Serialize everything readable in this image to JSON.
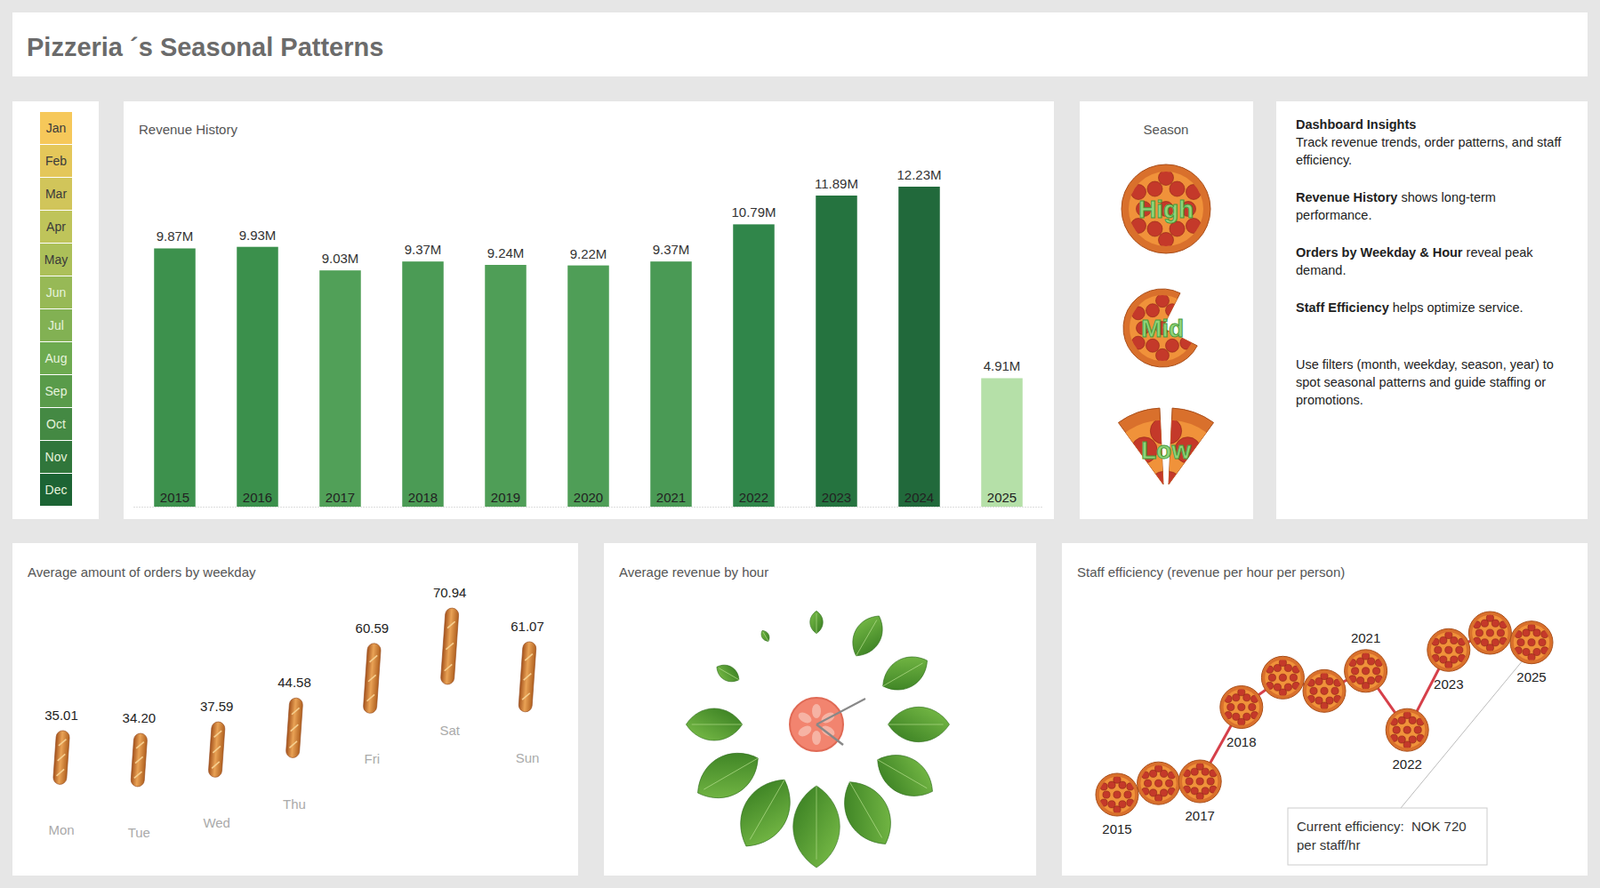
{
  "title": "Pizzeria ´s Seasonal Patterns",
  "month_filter": [
    "Jan",
    "Feb",
    "Mar",
    "Apr",
    "May",
    "Jun",
    "Jul",
    "Aug",
    "Sep",
    "Oct",
    "Nov",
    "Dec"
  ],
  "season_filter": {
    "title": "Season",
    "levels": [
      "High",
      "Mid",
      "Low"
    ]
  },
  "insights": {
    "heading": "Dashboard Insights",
    "intro": "Track revenue trends, order patterns, and staff efficiency.",
    "items": [
      {
        "bold": "Revenue History",
        "text": "shows long-term performance."
      },
      {
        "bold": "Orders by Weekday & Hour",
        "text": "reveal peak demand."
      },
      {
        "bold": "Staff Efficiency",
        "text": "helps optimize service."
      }
    ],
    "footer": "Use filters (month, weekday, season, year) to spot seasonal patterns and guide staffing or promotions."
  },
  "chart_data": [
    {
      "type": "bar",
      "title": "Revenue History",
      "categories": [
        "2015",
        "2016",
        "2017",
        "2018",
        "2019",
        "2020",
        "2021",
        "2022",
        "2023",
        "2024",
        "2025"
      ],
      "values": [
        9.87,
        9.93,
        9.03,
        9.37,
        9.24,
        9.22,
        9.37,
        10.79,
        11.89,
        12.23,
        4.91
      ],
      "value_labels": [
        "9.87M",
        "9.93M",
        "9.03M",
        "9.37M",
        "9.24M",
        "9.22M",
        "9.37M",
        "10.79M",
        "11.89M",
        "12.23M",
        "4.91M"
      ],
      "colors": [
        "#3d914d",
        "#3b904c",
        "#51a058",
        "#4b9b55",
        "#4f9e57",
        "#4f9e57",
        "#4a9a55",
        "#30864a",
        "#25733f",
        "#21693b",
        "#b5e0a8"
      ],
      "data_labels": true,
      "tick_labels": "x"
    },
    {
      "type": "scatter",
      "marker": "baguette",
      "title": "Average amount of orders by weekday",
      "categories": [
        "Mon",
        "Tue",
        "Wed",
        "Thu",
        "Fri",
        "Sat",
        "Sun"
      ],
      "values": [
        35.01,
        34.2,
        37.59,
        44.58,
        60.59,
        70.94,
        61.07
      ],
      "value_labels": [
        "35.01",
        "34.20",
        "37.59",
        "44.58",
        "60.59",
        "70.94",
        "61.07"
      ],
      "data_labels": true,
      "tick_labels": "x"
    },
    {
      "type": "radial",
      "marker": "leaf",
      "title": "Average revenue by hour",
      "categories": [
        null,
        null,
        null,
        null,
        null,
        null,
        null,
        null,
        null,
        null,
        null,
        null
      ],
      "values": [
        1100,
        2250,
        2500,
        3000,
        3100,
        3500,
        4000,
        3750,
        3400,
        2750,
        1250,
        600
      ],
      "tick_labels": false
    },
    {
      "type": "line",
      "marker": "pizza",
      "title": "Staff efficiency (revenue per hour per person)",
      "categories": [
        "2015",
        null,
        "2017",
        "2018",
        null,
        null,
        "2021",
        "2022",
        "2023",
        null,
        "2025"
      ],
      "values": [
        560,
        572,
        574,
        652,
        683,
        669,
        690,
        628,
        712,
        730,
        720
      ],
      "color": "#d6404a",
      "tick_labels": "x",
      "annotation": [
        "Current efficiency:  NOK 720",
        "per staff/hr"
      ]
    }
  ]
}
